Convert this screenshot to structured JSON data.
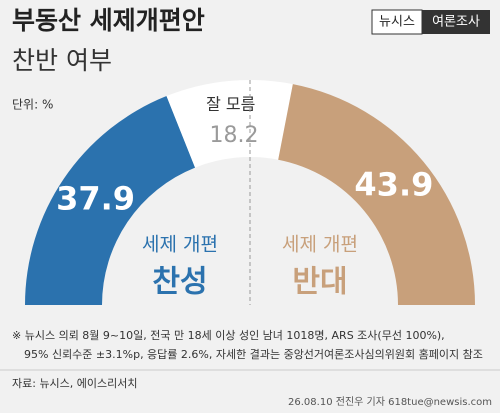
{
  "header": {
    "title": "부동산 세제개편안",
    "subtitle": "찬반 여부",
    "logo_left": "뉴시스",
    "logo_right": "여론조사",
    "unit": "단위: %"
  },
  "chart_data": {
    "type": "semi-donut",
    "categories": [
      "찬성",
      "잘 모름",
      "반대"
    ],
    "group_labels": [
      "세제 개편",
      null,
      "세제 개편"
    ],
    "values": [
      37.9,
      18.2,
      43.9
    ],
    "colors": [
      "#2b72ae",
      "#ffffff",
      "#c8a07b"
    ],
    "value_colors": [
      "#ffffff",
      "#9a9a9a",
      "#ffffff"
    ]
  },
  "footer": {
    "notes": [
      "※ 뉴시스 의뢰 8월 9~10일, 전국 만 18세 이상 성인 남녀 1018명, ARS 조사(무선 100%),",
      "95% 신뢰수준 ±3.1%p, 응답률 2.6%, 자세한 결과는 중앙선거여론조사심의위원회 홈페이지 참조"
    ],
    "source": "자료: 뉴시스, 에이스리서치",
    "credit": "26.08.10 전진우 기자 618tue@newsis.com"
  }
}
